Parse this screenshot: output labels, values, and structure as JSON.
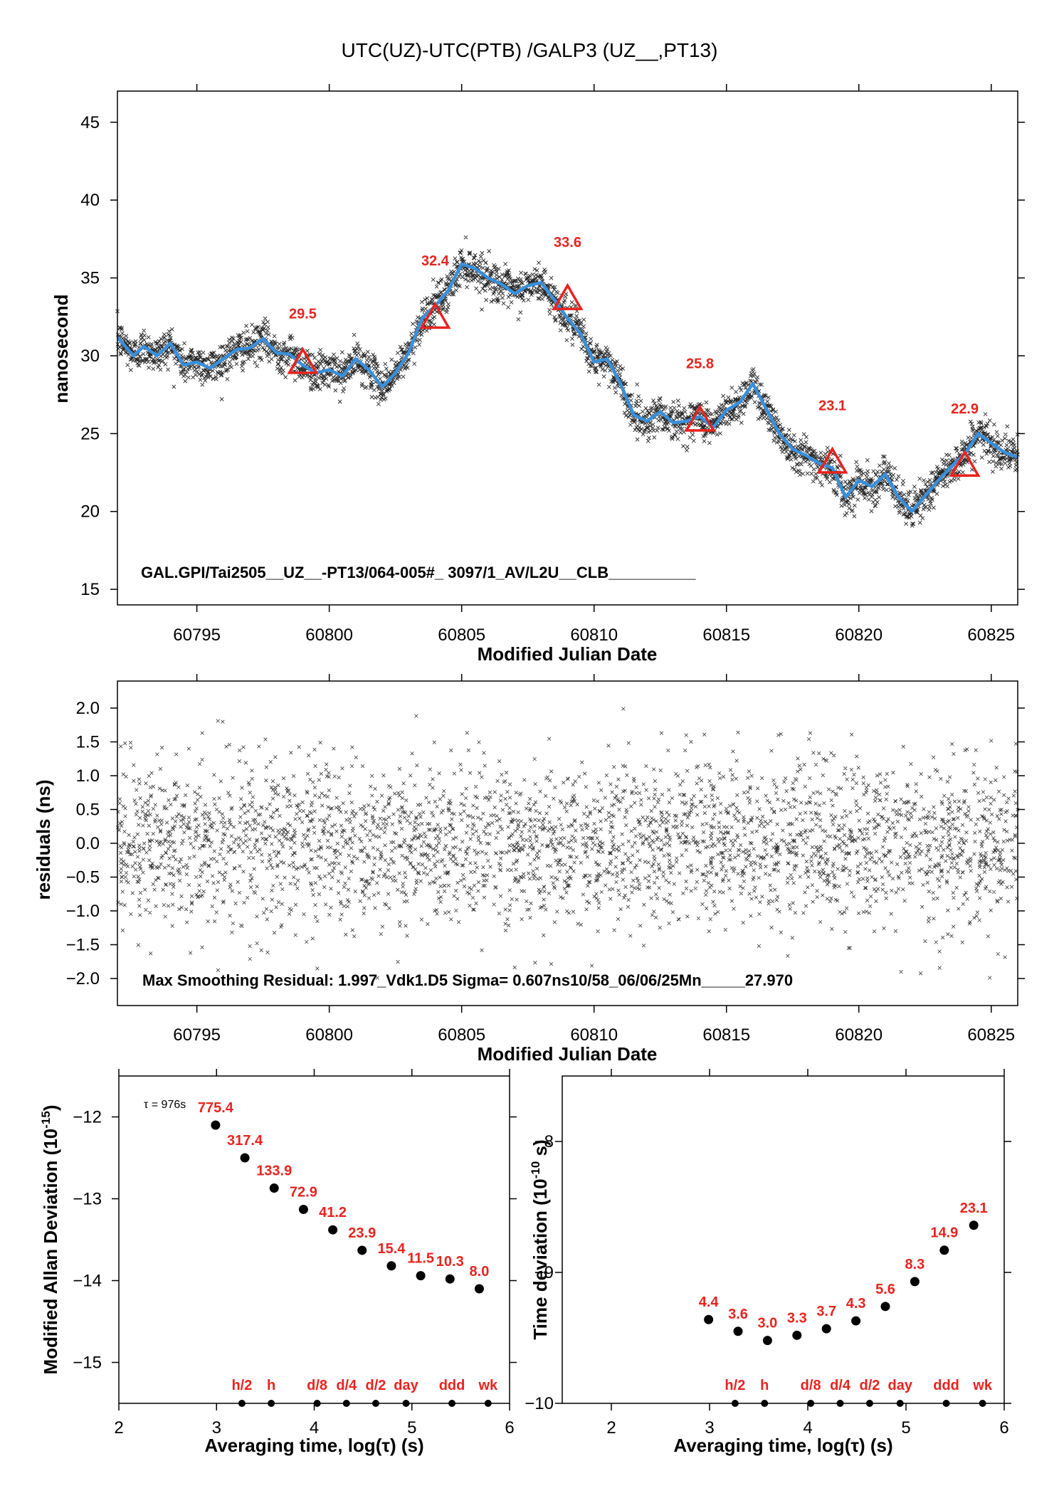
{
  "chart_data": [
    {
      "type": "scatter",
      "title": "UTC(UZ)-UTC(PTB)  /GALP3  (UZ__,PT13)",
      "xlabel": "Modified Julian Date",
      "ylabel": "nanosecond",
      "xlim": [
        60792,
        60826
      ],
      "ylim": [
        14,
        47
      ],
      "xticks": [
        60795,
        60800,
        60805,
        60810,
        60815,
        60820,
        60825
      ],
      "yticks": [
        15,
        20,
        25,
        30,
        35,
        40,
        45
      ],
      "note": "GAL.GPI/Tai2505__UZ__-PT13/064-005#_  3097/1_AV/L2U__CLB__________",
      "smoothed_curve": {
        "x": [
          60792,
          60792.6,
          60793,
          60793.5,
          60794,
          60794.5,
          60795,
          60795.5,
          60796,
          60796.5,
          60797,
          60797.5,
          60798,
          60798.5,
          60799,
          60799.5,
          60800,
          60800.5,
          60801,
          60801.5,
          60802,
          60802.5,
          60803,
          60803.5,
          60804,
          60804.5,
          60805,
          60805.5,
          60806,
          60806.5,
          60807,
          60807.5,
          60808,
          60808.5,
          60809,
          60809.5,
          60810,
          60810.5,
          60811,
          60811.5,
          60812,
          60812.5,
          60813,
          60813.5,
          60814,
          60814.5,
          60815,
          60815.5,
          60816,
          60816.5,
          60817,
          60817.5,
          60818,
          60818.5,
          60819,
          60819.5,
          60820,
          60820.5,
          60821,
          60821.5,
          60822,
          60822.5,
          60823,
          60823.5,
          60824,
          60824.5,
          60825,
          60825.5,
          60826
        ],
        "y": [
          31.2,
          30.0,
          30.6,
          30.0,
          30.8,
          29.4,
          29.6,
          29.2,
          29.8,
          30.4,
          30.5,
          31.1,
          30.2,
          30.1,
          29.4,
          28.9,
          29.1,
          28.7,
          29.8,
          29.1,
          28.0,
          28.9,
          30.2,
          32.4,
          33.2,
          34.2,
          35.9,
          35.6,
          35.0,
          34.6,
          34.0,
          34.5,
          34.7,
          33.6,
          32.4,
          31.4,
          29.6,
          29.8,
          28.2,
          26.2,
          25.8,
          26.4,
          25.7,
          25.8,
          26.1,
          25.4,
          26.5,
          27.0,
          28.2,
          26.6,
          25.0,
          24.0,
          23.6,
          23.1,
          22.8,
          20.9,
          22.0,
          21.6,
          22.4,
          20.9,
          20.0,
          21.0,
          22.0,
          22.9,
          23.7,
          25.0,
          24.4,
          23.8,
          23.5
        ]
      },
      "annotations": [
        {
          "x": 60799,
          "y": 29.5,
          "label": "29.5"
        },
        {
          "x": 60804,
          "y": 32.4,
          "label": "32.4"
        },
        {
          "x": 60809,
          "y": 33.6,
          "label": "33.6"
        },
        {
          "x": 60814,
          "y": 25.8,
          "label": "25.8"
        },
        {
          "x": 60819,
          "y": 23.1,
          "label": "23.1"
        },
        {
          "x": 60824,
          "y": 22.9,
          "label": "22.9"
        }
      ],
      "label_ny": [
        32.4,
        35.8,
        37.0,
        29.2,
        26.5,
        26.3
      ]
    },
    {
      "type": "scatter",
      "xlabel": "Modified Julian Date",
      "ylabel": "residuals (ns)",
      "xlim": [
        60792,
        60826
      ],
      "ylim": [
        -2.4,
        2.4
      ],
      "xticks": [
        60795,
        60800,
        60805,
        60810,
        60815,
        60820,
        60825
      ],
      "yticks": [
        2.0,
        1.5,
        1.0,
        0.5,
        0.0,
        -0.5,
        -1.0,
        -1.5,
        -2.0
      ],
      "ytick_labels": [
        "2.0",
        "1.5",
        "1.0",
        "0.5",
        "0.0",
        "−0.5",
        "−1.0",
        "−1.5",
        "−2.0"
      ],
      "sigma": 0.607,
      "note": "Max Smoothing Residual: 1.997_Vdk1.D5  Sigma= 0.607ns10/58_06/06/25Mn_____27.970"
    },
    {
      "type": "scatter",
      "xlabel": "Averaging time, log(τ) (s)",
      "ylabel": "Modified Allan Deviation (10",
      "ylabel_sup": "-15",
      "ylabel_end": ")",
      "xlim": [
        2,
        6
      ],
      "ylim": [
        -15.5,
        -11.5
      ],
      "xticks": [
        2,
        3,
        4,
        5,
        6
      ],
      "yticks": [
        -12,
        -13,
        -14,
        -15
      ],
      "ytick_labels": [
        "−12",
        "−13",
        "−14",
        "−15"
      ],
      "tau_note": "τ = 976s",
      "x": [
        2.99,
        3.29,
        3.59,
        3.89,
        4.19,
        4.49,
        4.79,
        5.09,
        5.39,
        5.69
      ],
      "y": [
        -12.1,
        -12.5,
        -12.87,
        -13.13,
        -13.38,
        -13.63,
        -13.82,
        -13.94,
        -13.98,
        -14.1
      ],
      "labels": [
        "775.4",
        "317.4",
        "133.9",
        "72.9",
        "41.2",
        "23.9",
        "15.4",
        "11.5",
        "10.3",
        "8.0"
      ],
      "markers": [
        {
          "x": 3.26,
          "label": "h/2"
        },
        {
          "x": 3.56,
          "label": "h"
        },
        {
          "x": 4.03,
          "label": "d/8"
        },
        {
          "x": 4.33,
          "label": "d/4"
        },
        {
          "x": 4.63,
          "label": "d/2"
        },
        {
          "x": 4.94,
          "label": "day"
        },
        {
          "x": 5.41,
          "label": "ddd"
        },
        {
          "x": 5.78,
          "label": "wk"
        }
      ]
    },
    {
      "type": "scatter",
      "xlabel": "Averaging time, log(τ) (s)",
      "ylabel": "Time deviation (10",
      "ylabel_sup": "-10",
      "ylabel_end": " s)",
      "xlim": [
        1.5,
        6
      ],
      "ylim": [
        -10,
        -7.5
      ],
      "xticks": [
        2,
        3,
        4,
        5,
        6
      ],
      "yticks": [
        -8,
        -9,
        -10
      ],
      "ytick_labels": [
        "−8",
        "−9",
        "−10"
      ],
      "x": [
        2.99,
        3.29,
        3.59,
        3.89,
        4.19,
        4.49,
        4.79,
        5.09,
        5.39,
        5.69
      ],
      "y": [
        -9.36,
        -9.45,
        -9.52,
        -9.48,
        -9.43,
        -9.37,
        -9.26,
        -9.07,
        -8.83,
        -8.64
      ],
      "labels": [
        "4.4",
        "3.6",
        "3.0",
        "3.3",
        "3.7",
        "4.3",
        "5.6",
        "8.3",
        "14.9",
        "23.1"
      ],
      "markers": [
        {
          "x": 3.26,
          "label": "h/2"
        },
        {
          "x": 3.56,
          "label": "h"
        },
        {
          "x": 4.03,
          "label": "d/8"
        },
        {
          "x": 4.33,
          "label": "d/4"
        },
        {
          "x": 4.63,
          "label": "d/2"
        },
        {
          "x": 4.94,
          "label": "day"
        },
        {
          "x": 5.41,
          "label": "ddd"
        },
        {
          "x": 5.78,
          "label": "wk"
        }
      ]
    }
  ],
  "colors": {
    "curve": "#3a8fd9",
    "label": "#e8231e",
    "points": "#000000"
  }
}
